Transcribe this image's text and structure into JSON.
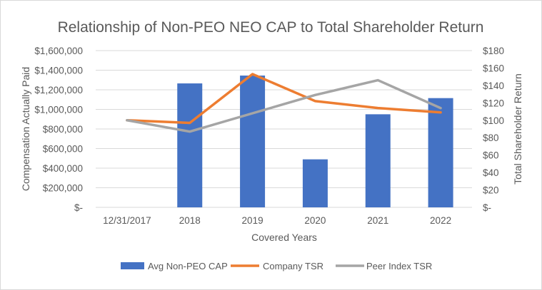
{
  "chart_data": {
    "type": "bar",
    "title": "Relationship of Non-PEO NEO CAP to Total Shareholder Return",
    "xlabel": "Covered Years",
    "ylabel": "Compensation Actually Paid",
    "y2label": "Total Shareholder Return",
    "categories": [
      "12/31/2017",
      "2018",
      "2019",
      "2020",
      "2021",
      "2022"
    ],
    "ylim": [
      0,
      1600000
    ],
    "y2lim": [
      0,
      180
    ],
    "yticks": [
      "$-",
      "$200,000",
      "$400,000",
      "$600,000",
      "$800,000",
      "$1,000,000",
      "$1,200,000",
      "$1,400,000",
      "$1,600,000"
    ],
    "y2ticks": [
      "$-",
      "$20",
      "$40",
      "$60",
      "$80",
      "$100",
      "$120",
      "$140",
      "$160",
      "$180"
    ],
    "grid": true,
    "legend_position": "bottom",
    "series": [
      {
        "name": "Avg Non-PEO CAP",
        "type": "bar",
        "axis": "left",
        "color": "#4472C4",
        "values": [
          null,
          1265000,
          1345000,
          490000,
          950000,
          1115000
        ]
      },
      {
        "name": "Company TSR",
        "type": "line",
        "axis": "right",
        "color": "#ED7D31",
        "values": [
          100,
          97,
          153,
          122,
          114,
          109
        ]
      },
      {
        "name": "Peer Index TSR",
        "type": "line",
        "axis": "right",
        "color": "#A5A5A5",
        "values": [
          100,
          87,
          108,
          129,
          146,
          114
        ]
      }
    ]
  }
}
